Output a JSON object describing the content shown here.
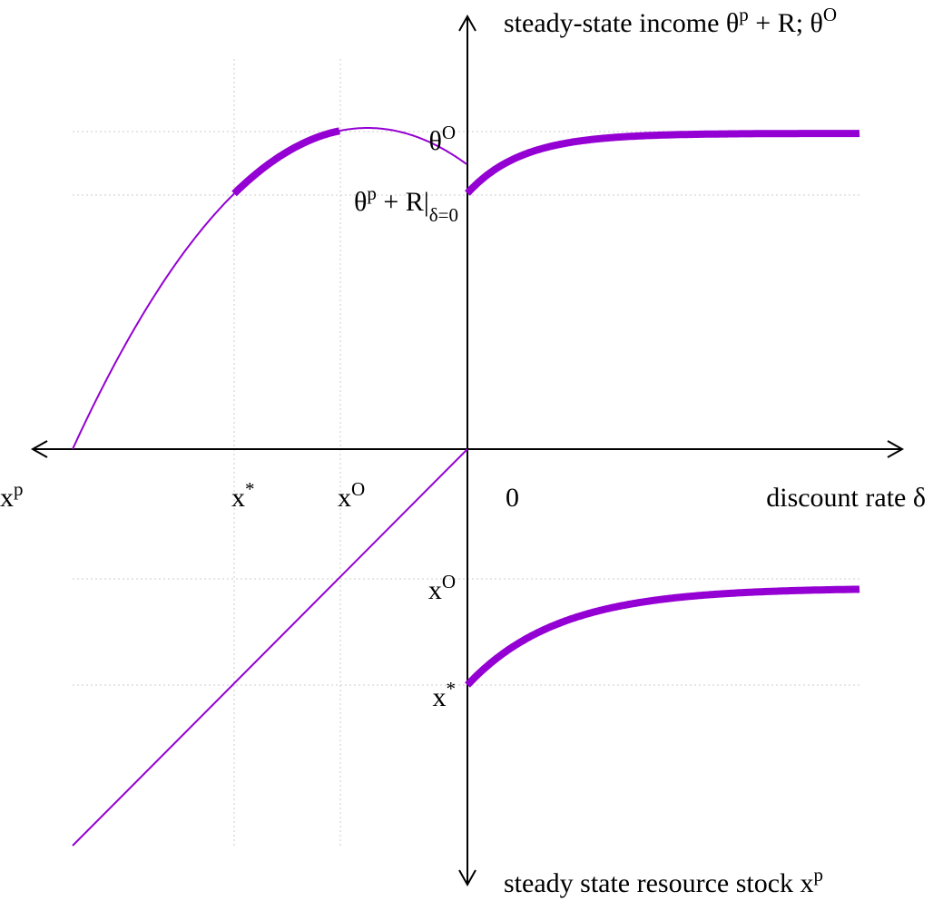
{
  "labels": {
    "y_axis_top": [
      {
        "text": "steady-state income θ"
      },
      {
        "sup": "p"
      },
      {
        "text": " + R; θ"
      },
      {
        "sup": "O"
      }
    ],
    "y_axis_bottom": [
      {
        "text": "steady state resource stock x"
      },
      {
        "sup": "p"
      }
    ],
    "x_axis": [
      {
        "text": "discount rate δ"
      }
    ],
    "x_tick_xp": [
      {
        "text": "x"
      },
      {
        "sup": "p"
      }
    ],
    "x_tick_xstar": [
      {
        "text": "x"
      },
      {
        "sup": "*"
      }
    ],
    "x_tick_xO": [
      {
        "text": "x"
      },
      {
        "sup": "O"
      }
    ],
    "x_tick_zero": [
      {
        "text": "0"
      }
    ],
    "y_tick_thetaO": [
      {
        "text": "θ"
      },
      {
        "sup": "O"
      }
    ],
    "y_tick_income": [
      {
        "text": "θ"
      },
      {
        "sup": "p"
      },
      {
        "text": " + R|"
      },
      {
        "sub": "δ=0"
      }
    ],
    "y_tick_xO": [
      {
        "text": "x"
      },
      {
        "sup": "O"
      }
    ],
    "y_tick_xstar": [
      {
        "text": "x"
      },
      {
        "sup": "*"
      }
    ]
  }
}
